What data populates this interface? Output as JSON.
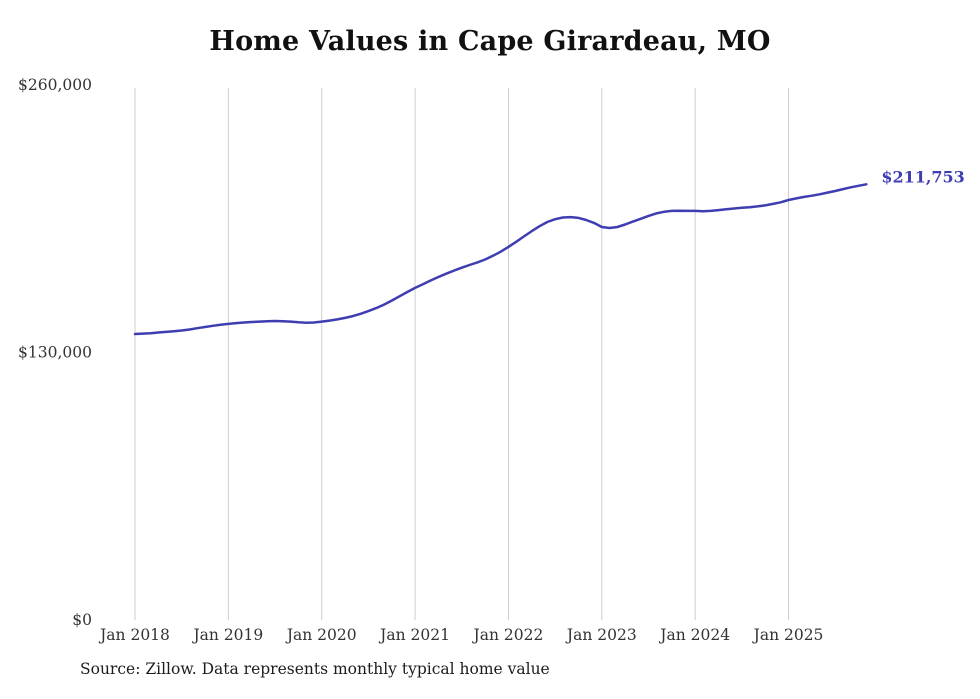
{
  "source": "Source: Zillow. Data represents monthly typical home value",
  "colors": {
    "line": "#3e3eb2",
    "grid": "#cccccc",
    "tick_text": "#333333",
    "title_text": "#111111"
  },
  "chart_data": {
    "type": "line",
    "title": "Home Values in Cape Girardeau, MO",
    "series_name": "Typical home value",
    "unit": "USD",
    "frequency": "monthly",
    "x_start": "2018-01",
    "x_end": "2025-11",
    "ylim": [
      0,
      260000
    ],
    "grid": "vertical-only",
    "legend": "none",
    "end_label": "$211,753",
    "last_value": 211753,
    "y_ticks": [
      {
        "value": 0,
        "label": "$0"
      },
      {
        "value": 130000,
        "label": "$130,000"
      },
      {
        "value": 260000,
        "label": "$260,000"
      }
    ],
    "x_ticks": [
      {
        "month_index": 0,
        "label": "Jan 2018"
      },
      {
        "month_index": 12,
        "label": "Jan 2019"
      },
      {
        "month_index": 24,
        "label": "Jan 2020"
      },
      {
        "month_index": 36,
        "label": "Jan 2021"
      },
      {
        "month_index": 48,
        "label": "Jan 2022"
      },
      {
        "month_index": 60,
        "label": "Jan 2023"
      },
      {
        "month_index": 72,
        "label": "Jan 2024"
      },
      {
        "month_index": 84,
        "label": "Jan 2025"
      }
    ],
    "values": [
      139000,
      139200,
      139400,
      139700,
      140000,
      140300,
      140700,
      141200,
      141800,
      142400,
      143000,
      143500,
      143900,
      144300,
      144600,
      144800,
      145000,
      145200,
      145300,
      145200,
      145000,
      144700,
      144500,
      144600,
      145000,
      145500,
      146100,
      146800,
      147700,
      148800,
      150100,
      151600,
      153300,
      155200,
      157300,
      159400,
      161400,
      163200,
      165000,
      166700,
      168300,
      169800,
      171200,
      172500,
      173800,
      175200,
      177000,
      179000,
      181300,
      183800,
      186400,
      189000,
      191400,
      193400,
      194800,
      195600,
      195800,
      195400,
      194400,
      193000,
      191000,
      190500,
      191000,
      192200,
      193600,
      195000,
      196400,
      197600,
      198400,
      198800,
      198900,
      198800,
      198800,
      198600,
      198800,
      199200,
      199600,
      200000,
      200300,
      200600,
      201000,
      201500,
      202200,
      203000,
      204100,
      204900,
      205600,
      206200,
      206900,
      207700,
      208500,
      209400,
      210300,
      211000,
      211753
    ]
  }
}
